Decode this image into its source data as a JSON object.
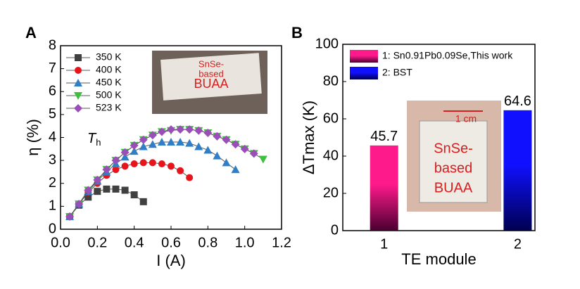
{
  "chart_data": [
    {
      "type": "line",
      "panel_label": "A",
      "x_label": "I (A)",
      "y_label": "η (%)",
      "annotation": {
        "symbol": "T",
        "subscript": "h"
      },
      "photo_text": [
        "SnSe-",
        "based",
        "BUAA"
      ],
      "xlim": [
        0,
        1.2
      ],
      "ylim": [
        0,
        8
      ],
      "xticks": [
        {
          "value": 0,
          "label": "0.0"
        },
        0.2,
        0.4,
        0.6,
        0.8,
        {
          "value": 1,
          "label": "1.0"
        },
        1.2
      ],
      "yticks": [
        0,
        1,
        2,
        3,
        4,
        5,
        6,
        7,
        8
      ],
      "series": [
        {
          "name": "350 K",
          "color": "#404040",
          "marker": "square",
          "x": [
            0.05,
            0.1,
            0.15,
            0.2,
            0.25,
            0.3,
            0.35,
            0.4,
            0.45
          ],
          "values": [
            0.55,
            1.05,
            1.4,
            1.65,
            1.75,
            1.75,
            1.7,
            1.5,
            1.2
          ]
        },
        {
          "name": "400 K",
          "color": "#e8141b",
          "marker": "circle",
          "x": [
            0.05,
            0.1,
            0.15,
            0.2,
            0.25,
            0.3,
            0.35,
            0.4,
            0.45,
            0.5,
            0.55,
            0.6,
            0.65,
            0.7
          ],
          "values": [
            0.55,
            1.1,
            1.6,
            2.0,
            2.35,
            2.6,
            2.75,
            2.85,
            2.9,
            2.9,
            2.85,
            2.75,
            2.55,
            2.25
          ]
        },
        {
          "name": "450 K",
          "color": "#2f7fc8",
          "marker": "triangle",
          "x": [
            0.05,
            0.1,
            0.15,
            0.2,
            0.25,
            0.3,
            0.35,
            0.4,
            0.45,
            0.5,
            0.55,
            0.6,
            0.65,
            0.7,
            0.75,
            0.8,
            0.85,
            0.9,
            0.95
          ],
          "values": [
            0.55,
            1.1,
            1.65,
            2.1,
            2.5,
            2.85,
            3.15,
            3.4,
            3.6,
            3.7,
            3.8,
            3.8,
            3.8,
            3.75,
            3.6,
            3.45,
            3.2,
            2.9,
            2.6
          ]
        },
        {
          "name": "500 K",
          "color": "#3fbf3f",
          "marker": "down-triangle",
          "x": [
            0.05,
            0.1,
            0.15,
            0.2,
            0.25,
            0.3,
            0.35,
            0.4,
            0.45,
            0.5,
            0.55,
            0.6,
            0.65,
            0.7,
            0.75,
            0.8,
            0.85,
            0.9,
            0.95,
            1.0,
            1.05,
            1.1
          ],
          "values": [
            0.55,
            1.1,
            1.7,
            2.15,
            2.6,
            3.0,
            3.35,
            3.65,
            3.9,
            4.1,
            4.25,
            4.3,
            4.35,
            4.35,
            4.3,
            4.2,
            4.05,
            3.9,
            3.7,
            3.5,
            3.3,
            3.05
          ]
        },
        {
          "name": "523 K",
          "color": "#9a4fb8",
          "marker": "diamond",
          "x": [
            0.05,
            0.1,
            0.15,
            0.2,
            0.25,
            0.3,
            0.35,
            0.4,
            0.45,
            0.5,
            0.55,
            0.6,
            0.65,
            0.7,
            0.75,
            0.8,
            0.85,
            0.9,
            0.95,
            1.0,
            1.05
          ],
          "values": [
            0.55,
            1.1,
            1.7,
            2.15,
            2.6,
            3.0,
            3.35,
            3.65,
            3.9,
            4.1,
            4.25,
            4.35,
            4.35,
            4.35,
            4.3,
            4.2,
            4.05,
            3.9,
            3.7,
            3.5,
            3.3
          ]
        }
      ]
    },
    {
      "type": "bar",
      "panel_label": "B",
      "x_label": "TE module",
      "y_label": "ΔTmax (K)",
      "photo_text": [
        "SnSe-",
        "based",
        "BUAA",
        "1 cm"
      ],
      "categories": [
        "1",
        "2"
      ],
      "ylim": [
        0,
        100
      ],
      "yticks": [
        0,
        20,
        40,
        60,
        80,
        100
      ],
      "series": [
        {
          "name": "1: Sn0.91Pb0.09Se,This work",
          "color": "#ff1a8c",
          "values": [
            45.7,
            null
          ]
        },
        {
          "name": "2: BST",
          "color": "#1010ff",
          "values": [
            null,
            64.6
          ]
        }
      ]
    }
  ]
}
